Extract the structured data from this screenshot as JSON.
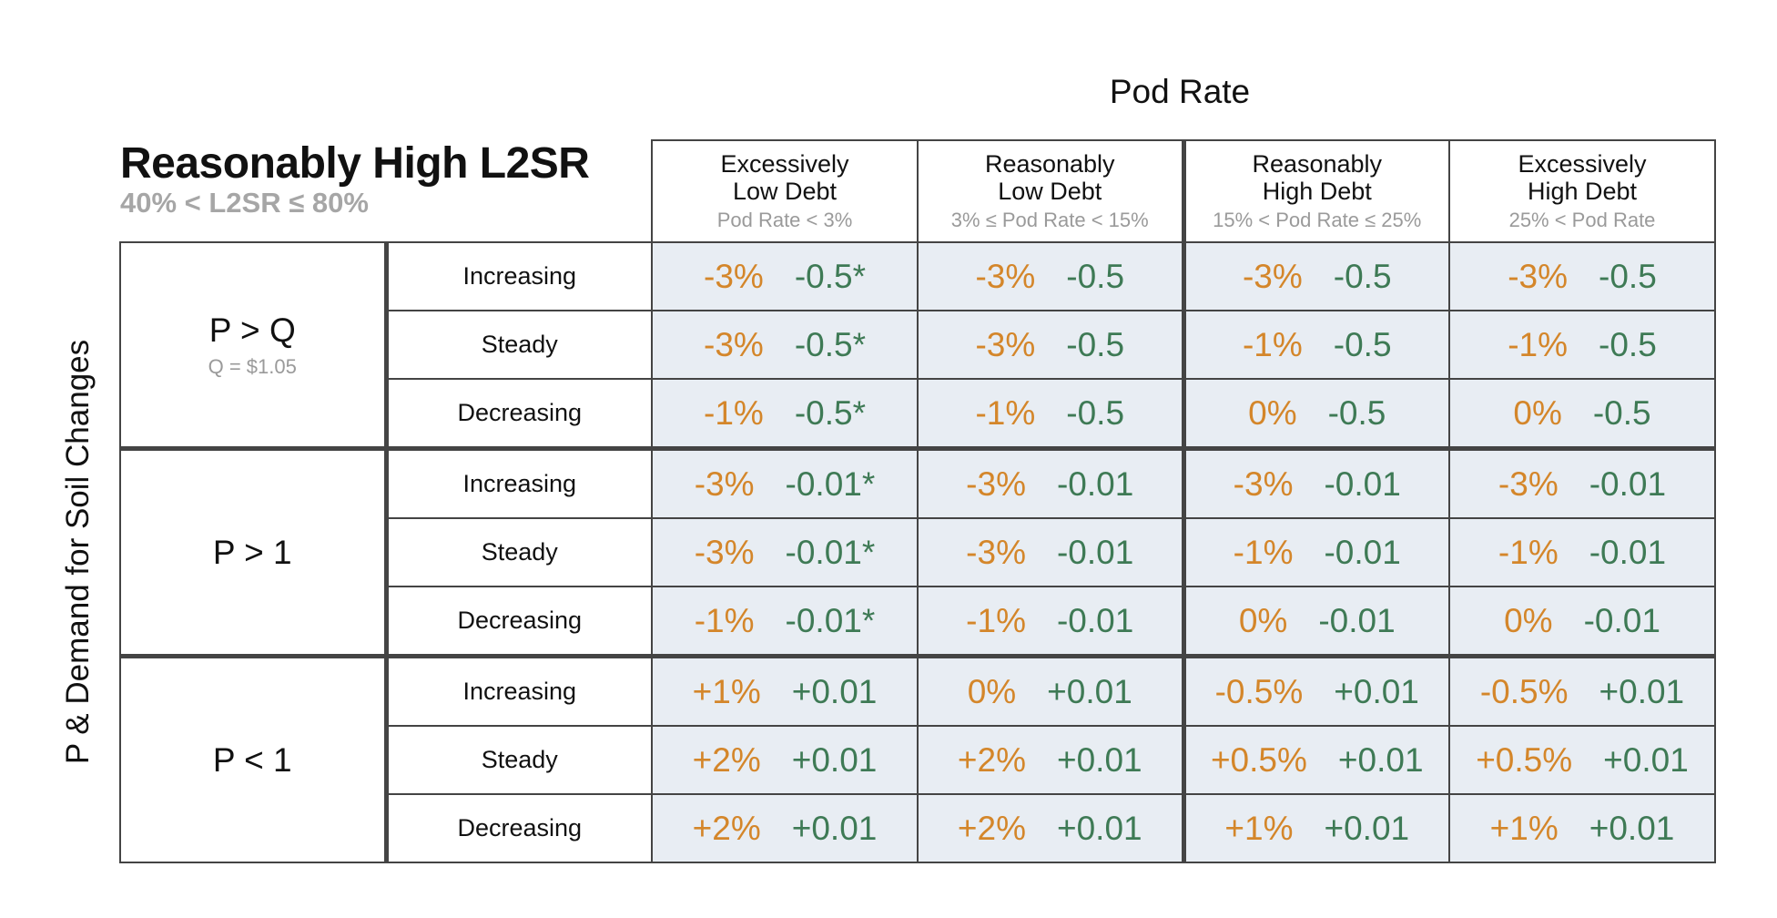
{
  "header": {
    "pod_rate_title": "Pod Rate",
    "l2sr_title": "Reasonably High L2SR",
    "l2sr_range": "40% < L2SR ≤ 80%",
    "y_axis_label": "P & Demand for Soil Changes"
  },
  "columns": [
    {
      "name_line1": "Excessively",
      "name_line2": "Low Debt",
      "range": "Pod Rate < 3%"
    },
    {
      "name_line1": "Reasonably",
      "name_line2": "Low Debt",
      "range": "3% ≤ Pod Rate < 15%"
    },
    {
      "name_line1": "Reasonably",
      "name_line2": "High Debt",
      "range": "15% < Pod Rate ≤ 25%"
    },
    {
      "name_line1": "Excessively",
      "name_line2": "High Debt",
      "range": "25% < Pod Rate"
    }
  ],
  "groups": [
    {
      "name": "P > Q",
      "note": "Q = $1.05",
      "rows": [
        {
          "trend": "Increasing",
          "cells": [
            [
              "-3%",
              "-0.5*"
            ],
            [
              "-3%",
              "-0.5"
            ],
            [
              "-3%",
              "-0.5"
            ],
            [
              "-3%",
              "-0.5"
            ]
          ]
        },
        {
          "trend": "Steady",
          "cells": [
            [
              "-3%",
              "-0.5*"
            ],
            [
              "-3%",
              "-0.5"
            ],
            [
              "-1%",
              "-0.5"
            ],
            [
              "-1%",
              "-0.5"
            ]
          ]
        },
        {
          "trend": "Decreasing",
          "cells": [
            [
              "-1%",
              "-0.5*"
            ],
            [
              "-1%",
              "-0.5"
            ],
            [
              "0%",
              "-0.5"
            ],
            [
              "0%",
              "-0.5"
            ]
          ]
        }
      ]
    },
    {
      "name": "P > 1",
      "note": "",
      "rows": [
        {
          "trend": "Increasing",
          "cells": [
            [
              "-3%",
              "-0.01*"
            ],
            [
              "-3%",
              "-0.01"
            ],
            [
              "-3%",
              "-0.01"
            ],
            [
              "-3%",
              "-0.01"
            ]
          ]
        },
        {
          "trend": "Steady",
          "cells": [
            [
              "-3%",
              "-0.01*"
            ],
            [
              "-3%",
              "-0.01"
            ],
            [
              "-1%",
              "-0.01"
            ],
            [
              "-1%",
              "-0.01"
            ]
          ]
        },
        {
          "trend": "Decreasing",
          "cells": [
            [
              "-1%",
              "-0.01*"
            ],
            [
              "-1%",
              "-0.01"
            ],
            [
              "0%",
              "-0.01"
            ],
            [
              "0%",
              "-0.01"
            ]
          ]
        }
      ]
    },
    {
      "name": "P < 1",
      "note": "",
      "rows": [
        {
          "trend": "Increasing",
          "cells": [
            [
              "+1%",
              "+0.01"
            ],
            [
              "0%",
              "+0.01"
            ],
            [
              "-0.5%",
              "+0.01"
            ],
            [
              "-0.5%",
              "+0.01"
            ]
          ]
        },
        {
          "trend": "Steady",
          "cells": [
            [
              "+2%",
              "+0.01"
            ],
            [
              "+2%",
              "+0.01"
            ],
            [
              "+0.5%",
              "+0.01"
            ],
            [
              "+0.5%",
              "+0.01"
            ]
          ]
        },
        {
          "trend": "Decreasing",
          "cells": [
            [
              "+2%",
              "+0.01"
            ],
            [
              "+2%",
              "+0.01"
            ],
            [
              "+1%",
              "+0.01"
            ],
            [
              "+1%",
              "+0.01"
            ]
          ]
        }
      ]
    }
  ],
  "colors": {
    "rate_value": "#d4862a",
    "adjustment_value": "#3e7a55",
    "cell_background": "#e8edf3",
    "muted_text": "#9a9a9a"
  }
}
